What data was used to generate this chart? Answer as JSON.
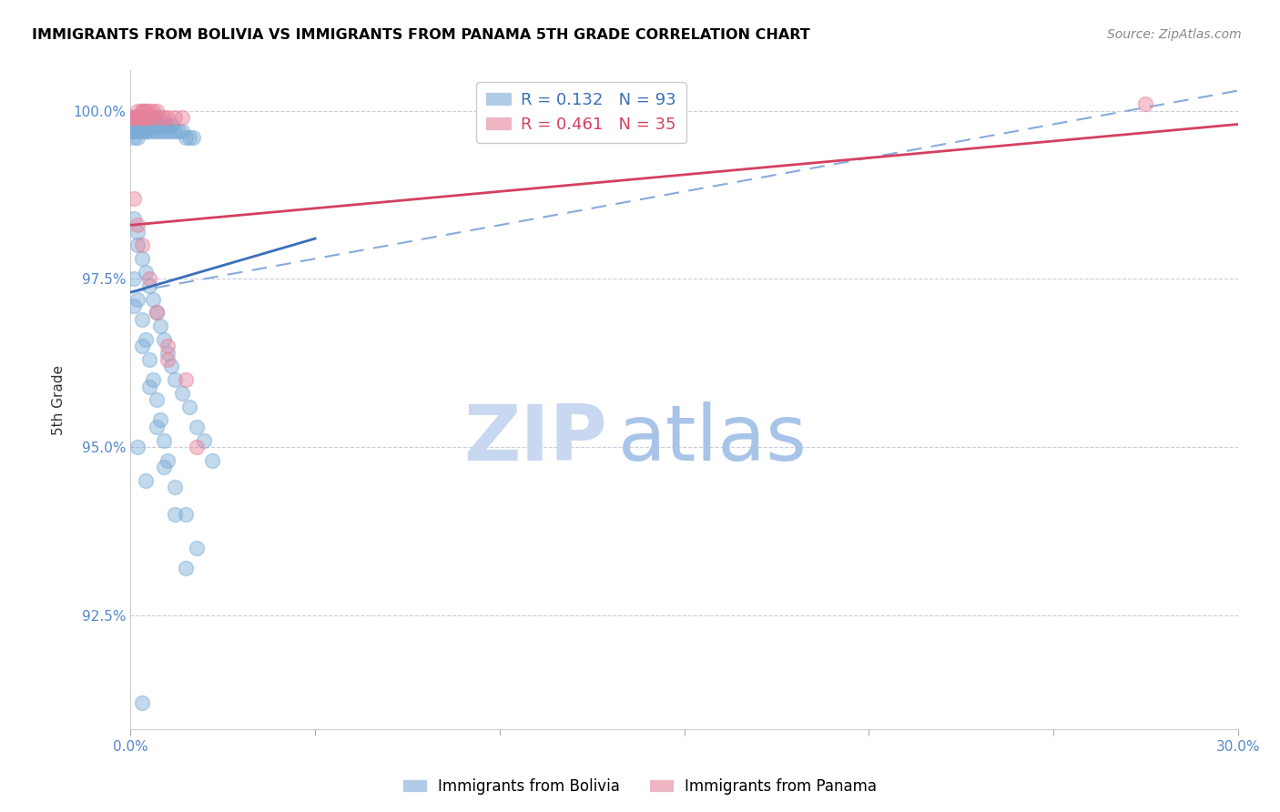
{
  "title": "IMMIGRANTS FROM BOLIVIA VS IMMIGRANTS FROM PANAMA 5TH GRADE CORRELATION CHART",
  "source": "Source: ZipAtlas.com",
  "ylabel": "5th Grade",
  "xlim": [
    0.0,
    0.3
  ],
  "ylim": [
    0.908,
    1.006
  ],
  "xticks": [
    0.0,
    0.05,
    0.1,
    0.15,
    0.2,
    0.25,
    0.3
  ],
  "xticklabels": [
    "0.0%",
    "",
    "",
    "",
    "",
    "",
    "30.0%"
  ],
  "yticks": [
    0.925,
    0.95,
    0.975,
    1.0
  ],
  "yticklabels": [
    "92.5%",
    "95.0%",
    "97.5%",
    "100.0%"
  ],
  "bolivia_color": "#7aacd6",
  "panama_color": "#e8829a",
  "bolivia_R": 0.132,
  "bolivia_N": 93,
  "panama_R": 0.461,
  "panama_N": 35,
  "bolivia_line_color": "#3a6fba",
  "panama_line_color": "#d44060",
  "dash_line_color": "#88aadd",
  "watermark_zip": "ZIP",
  "watermark_atlas": "atlas",
  "watermark_color_zip": "#c8d8f0",
  "watermark_color_atlas": "#a8c4e8",
  "bolivia_scatter_x": [
    0.001,
    0.001,
    0.001,
    0.001,
    0.001,
    0.001,
    0.001,
    0.002,
    0.002,
    0.002,
    0.002,
    0.002,
    0.002,
    0.002,
    0.003,
    0.003,
    0.003,
    0.003,
    0.003,
    0.003,
    0.004,
    0.004,
    0.004,
    0.004,
    0.004,
    0.005,
    0.005,
    0.005,
    0.005,
    0.006,
    0.006,
    0.006,
    0.006,
    0.007,
    0.007,
    0.007,
    0.008,
    0.008,
    0.009,
    0.009,
    0.01,
    0.01,
    0.011,
    0.011,
    0.012,
    0.013,
    0.014,
    0.015,
    0.016,
    0.017,
    0.001,
    0.002,
    0.002,
    0.003,
    0.004,
    0.005,
    0.006,
    0.007,
    0.008,
    0.009,
    0.01,
    0.011,
    0.012,
    0.014,
    0.016,
    0.018,
    0.02,
    0.022,
    0.001,
    0.002,
    0.003,
    0.004,
    0.005,
    0.006,
    0.007,
    0.008,
    0.009,
    0.01,
    0.012,
    0.015,
    0.018,
    0.001,
    0.003,
    0.005,
    0.007,
    0.009,
    0.012,
    0.015,
    0.002,
    0.004,
    0.003
  ],
  "bolivia_scatter_y": [
    0.999,
    0.998,
    0.998,
    0.997,
    0.997,
    0.997,
    0.996,
    0.999,
    0.999,
    0.998,
    0.998,
    0.997,
    0.997,
    0.996,
    0.999,
    0.999,
    0.998,
    0.998,
    0.997,
    0.997,
    0.999,
    0.998,
    0.998,
    0.997,
    0.997,
    0.999,
    0.999,
    0.998,
    0.997,
    0.999,
    0.998,
    0.998,
    0.997,
    0.999,
    0.998,
    0.997,
    0.998,
    0.997,
    0.998,
    0.997,
    0.998,
    0.997,
    0.998,
    0.997,
    0.997,
    0.997,
    0.997,
    0.996,
    0.996,
    0.996,
    0.984,
    0.982,
    0.98,
    0.978,
    0.976,
    0.974,
    0.972,
    0.97,
    0.968,
    0.966,
    0.964,
    0.962,
    0.96,
    0.958,
    0.956,
    0.953,
    0.951,
    0.948,
    0.975,
    0.972,
    0.969,
    0.966,
    0.963,
    0.96,
    0.957,
    0.954,
    0.951,
    0.948,
    0.944,
    0.94,
    0.935,
    0.971,
    0.965,
    0.959,
    0.953,
    0.947,
    0.94,
    0.932,
    0.95,
    0.945,
    0.912
  ],
  "panama_scatter_x": [
    0.001,
    0.001,
    0.001,
    0.002,
    0.002,
    0.002,
    0.003,
    0.003,
    0.003,
    0.003,
    0.004,
    0.004,
    0.004,
    0.004,
    0.004,
    0.005,
    0.005,
    0.006,
    0.006,
    0.007,
    0.008,
    0.009,
    0.01,
    0.012,
    0.014,
    0.001,
    0.002,
    0.003,
    0.005,
    0.007,
    0.01,
    0.015,
    0.018,
    0.01,
    0.275
  ],
  "panama_scatter_y": [
    0.999,
    0.999,
    0.999,
    1.0,
    0.999,
    0.999,
    1.0,
    1.0,
    0.999,
    0.999,
    1.0,
    1.0,
    0.999,
    0.999,
    0.999,
    1.0,
    0.999,
    1.0,
    0.999,
    1.0,
    0.999,
    0.999,
    0.999,
    0.999,
    0.999,
    0.987,
    0.983,
    0.98,
    0.975,
    0.97,
    0.965,
    0.96,
    0.95,
    0.963,
    1.001
  ],
  "bolivia_line_x0": 0.0,
  "bolivia_line_x1": 0.05,
  "bolivia_line_y0": 0.973,
  "bolivia_line_y1": 0.981,
  "dashed_line_x0": 0.0,
  "dashed_line_x1": 0.3,
  "dashed_line_y0": 0.973,
  "dashed_line_y1": 1.003,
  "panama_line_x0": 0.0,
  "panama_line_x1": 0.3,
  "panama_line_y0": 0.983,
  "panama_line_y1": 0.998
}
